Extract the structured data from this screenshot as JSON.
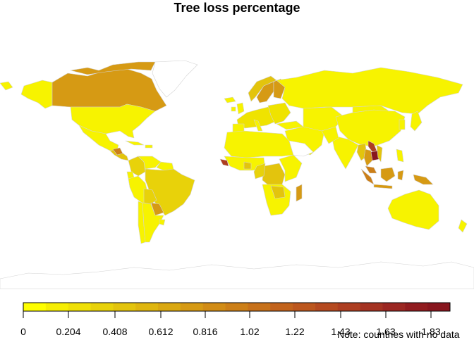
{
  "title": "Tree loss percentage",
  "note": "Note: countries with no data",
  "legend": {
    "colors": [
      "#ffff00",
      "#f6ee04",
      "#efe007",
      "#e8d20a",
      "#e3c40d",
      "#dfb60f",
      "#daa811",
      "#d69a14",
      "#d18c16",
      "#cc7f18",
      "#c7711a",
      "#c2631c",
      "#bc571e",
      "#b54a20",
      "#ad3e21",
      "#a43322",
      "#9b2722",
      "#911c1f",
      "#88161e"
    ],
    "tick_labels": [
      "0",
      "0.204",
      "0.408",
      "0.612",
      "0.816",
      "1.02",
      "1.22",
      "1.43",
      "1.63",
      "1.83"
    ]
  },
  "map_colors": {
    "lowest": "#f7f300",
    "low": "#efe300",
    "mid_low": "#e8d20a",
    "mid": "#e3c40d",
    "mid_high": "#d69a14",
    "high": "#cc7f18",
    "very_high": "#ad3e21",
    "highest": "#88161e",
    "no_data": "#ffffff",
    "border": "#d3d3d3"
  }
}
